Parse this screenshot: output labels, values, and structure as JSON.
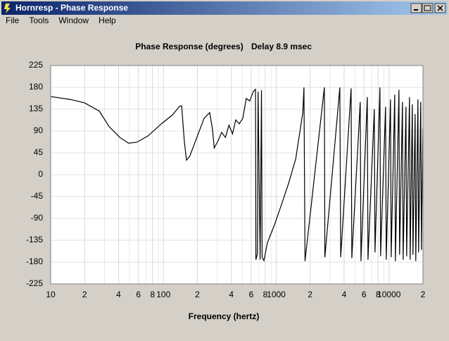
{
  "window": {
    "title": "Hornresp - Phase Response",
    "menu": [
      "File",
      "Tools",
      "Window",
      "Help"
    ]
  },
  "chart_data": {
    "type": "line",
    "title": "Phase Response (degrees)",
    "annotation": "Delay 8.9 msec",
    "xlabel": "Frequency (hertz)",
    "xscale": "log",
    "grid": true,
    "color": "#000000",
    "xlim": [
      10,
      20000
    ],
    "ylim": [
      -225,
      225
    ],
    "xticks": [
      {
        "value": 10,
        "label": "10"
      },
      {
        "value": 20,
        "label": "2"
      },
      {
        "value": 40,
        "label": "4"
      },
      {
        "value": 60,
        "label": "6"
      },
      {
        "value": 80,
        "label": "8"
      },
      {
        "value": 100,
        "label": "100"
      },
      {
        "value": 200,
        "label": "2"
      },
      {
        "value": 400,
        "label": "4"
      },
      {
        "value": 600,
        "label": "6"
      },
      {
        "value": 800,
        "label": "8"
      },
      {
        "value": 1000,
        "label": "1000"
      },
      {
        "value": 2000,
        "label": "2"
      },
      {
        "value": 4000,
        "label": "4"
      },
      {
        "value": 6000,
        "label": "6"
      },
      {
        "value": 8000,
        "label": "8"
      },
      {
        "value": 10000,
        "label": "10000"
      },
      {
        "value": 20000,
        "label": "2"
      }
    ],
    "xminorticks": [
      30,
      50,
      70,
      90,
      300,
      500,
      700,
      900,
      3000,
      5000,
      7000,
      9000
    ],
    "yticks": [
      225,
      180,
      135,
      90,
      45,
      0,
      -45,
      -90,
      -135,
      -180,
      -225
    ],
    "x": [
      10,
      15,
      20,
      27,
      33,
      41,
      49,
      58,
      73,
      97,
      120,
      139,
      145,
      153,
      160,
      171,
      198,
      229,
      257,
      272,
      282,
      305,
      328,
      354,
      381,
      410,
      437,
      470,
      505,
      542,
      582,
      625,
      655,
      660,
      680,
      690,
      720,
      740,
      750,
      778,
      833,
      962,
      1115,
      1290,
      1490,
      1720,
      1761,
      1800,
      2672,
      2700,
      3664,
      3730,
      4612,
      4680,
      5557,
      5640,
      6418,
      6510,
      7407,
      7510,
      8310,
      8420,
      9320,
      9450,
      10306,
      10450,
      11233,
      11390,
      12246,
      12410,
      13157,
      13340,
      14136,
      14330,
      15188,
      15400,
      16089,
      16300,
      17037,
      17270,
      18048,
      18290,
      19106,
      19370,
      19958
    ],
    "values": [
      161,
      155,
      148,
      131,
      99,
      77,
      65,
      67,
      80,
      106,
      123,
      141,
      142,
      70,
      30,
      38,
      77,
      116,
      128,
      94,
      55,
      70,
      87,
      77,
      102,
      84,
      113,
      105,
      116,
      157,
      152,
      171,
      176,
      -175,
      -163,
      171,
      -175,
      174,
      -170,
      -177,
      -141,
      -104,
      -61,
      -17,
      33,
      128,
      180,
      -178,
      180,
      -170,
      180,
      -170,
      178,
      -172,
      150,
      -178,
      160,
      -175,
      135,
      -160,
      180,
      -168,
      140,
      -175,
      155,
      -170,
      165,
      -178,
      175,
      -165,
      150,
      -175,
      140,
      -168,
      160,
      -175,
      145,
      -165,
      125,
      -178,
      155,
      -160,
      150,
      -155,
      95
    ]
  }
}
